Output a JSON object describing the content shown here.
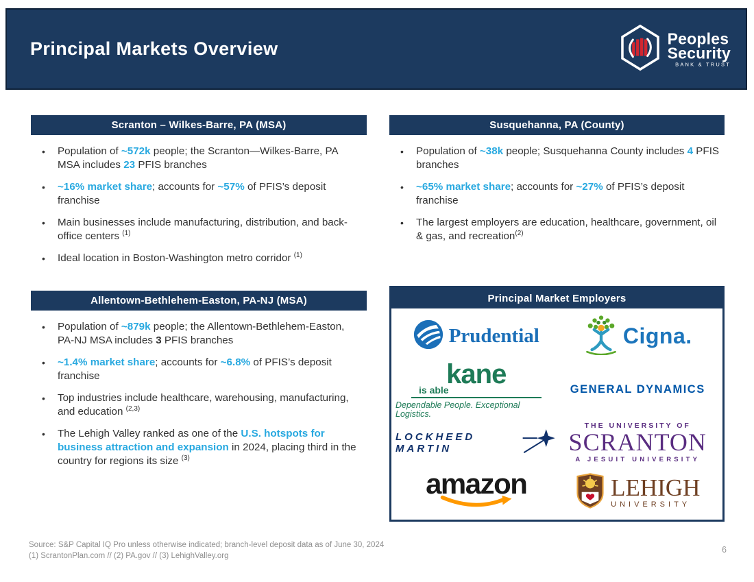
{
  "header": {
    "title": "Principal Markets Overview",
    "logo": {
      "line1": "Peoples",
      "line2": "Security",
      "line3": "BANK & TRUST"
    }
  },
  "panels": [
    {
      "title": "Scranton – Wilkes-Barre, PA (MSA)",
      "bullets": [
        [
          {
            "t": "Population of ",
            "s": "n"
          },
          {
            "t": "~572k",
            "s": "a"
          },
          {
            "t": " people; the Scranton—Wilkes-Barre, PA MSA includes ",
            "s": "n"
          },
          {
            "t": "23",
            "s": "a"
          },
          {
            "t": " PFIS branches",
            "s": "n"
          }
        ],
        [
          {
            "t": "~16% market share",
            "s": "a"
          },
          {
            "t": "; accounts for ",
            "s": "n"
          },
          {
            "t": "~57%",
            "s": "a"
          },
          {
            "t": " of PFIS’s deposit franchise",
            "s": "n"
          }
        ],
        [
          {
            "t": "Main businesses include manufacturing, distribution, and back-office centers ",
            "s": "n"
          },
          {
            "t": "(1)",
            "s": "sup"
          }
        ],
        [
          {
            "t": "Ideal location in Boston-Washington metro corridor ",
            "s": "n"
          },
          {
            "t": "(1)",
            "s": "sup"
          }
        ]
      ]
    },
    {
      "title": "Susquehanna, PA (County)",
      "bullets": [
        [
          {
            "t": "Population of ",
            "s": "n"
          },
          {
            "t": "~38k",
            "s": "a"
          },
          {
            "t": " people; Susquehanna County includes ",
            "s": "n"
          },
          {
            "t": "4",
            "s": "a"
          },
          {
            "t": " PFIS branches",
            "s": "n"
          }
        ],
        [
          {
            "t": "~65% market share",
            "s": "a"
          },
          {
            "t": "; accounts for ",
            "s": "n"
          },
          {
            "t": "~27%",
            "s": "a"
          },
          {
            "t": " of PFIS’s deposit franchise",
            "s": "n"
          }
        ],
        [
          {
            "t": "The largest employers are education, healthcare, government, oil & gas, and recreation",
            "s": "n"
          },
          {
            "t": "(2)",
            "s": "sup"
          }
        ]
      ]
    },
    {
      "title": "Allentown-Bethlehem-Easton, PA-NJ (MSA)",
      "bullets": [
        [
          {
            "t": "Population of ",
            "s": "n"
          },
          {
            "t": "~879k",
            "s": "a"
          },
          {
            "t": " people; the Allentown-Bethlehem-Easton, PA-NJ MSA includes ",
            "s": "n"
          },
          {
            "t": "3",
            "s": "b"
          },
          {
            "t": " PFIS branches",
            "s": "n"
          }
        ],
        [
          {
            "t": "~1.4% market share",
            "s": "a"
          },
          {
            "t": "; accounts for ",
            "s": "n"
          },
          {
            "t": "~6.8%",
            "s": "a"
          },
          {
            "t": " of PFIS’s deposit franchise",
            "s": "n"
          }
        ],
        [
          {
            "t": "Top industries include healthcare, warehousing, manufacturing, and education ",
            "s": "n"
          },
          {
            "t": "(2,3)",
            "s": "sup"
          }
        ],
        [
          {
            "t": "The Lehigh Valley ranked as one of the ",
            "s": "n"
          },
          {
            "t": "U.S. hotspots for business attraction and expansion",
            "s": "a"
          },
          {
            "t": " in 2024, placing third in the country for regions its size ",
            "s": "n"
          },
          {
            "t": "(3)",
            "s": "sup"
          }
        ]
      ]
    }
  ],
  "employers_panel": {
    "title": "Principal Market Employers",
    "logos": [
      {
        "name": "prudential",
        "text": "Prudential"
      },
      {
        "name": "cigna",
        "text": "Cigna."
      },
      {
        "name": "kane",
        "text": "kane",
        "sub": "is able",
        "tagline": "Dependable People. Exceptional Logistics."
      },
      {
        "name": "general-dynamics",
        "text": "GENERAL DYNAMICS"
      },
      {
        "name": "lockheed-martin",
        "text": "LOCKHEED MARTIN"
      },
      {
        "name": "university-of-scranton",
        "line1": "THE UNIVERSITY OF",
        "line2": "SCRANTON",
        "line3": "A JESUIT UNIVERSITY"
      },
      {
        "name": "amazon",
        "text": "amazon"
      },
      {
        "name": "lehigh-university",
        "line1": "LEHIGH",
        "line2": "UNIVERSITY"
      }
    ]
  },
  "footer": {
    "source_line1": "Source: S&P Capital IQ Pro unless otherwise indicated; branch-level deposit data as of June 30, 2024",
    "source_line2": "(1) ScrantonPlan.com // (2) PA.gov // (3) LehighValley.org",
    "page_number": "6"
  },
  "colors": {
    "navy": "#1C3A5F",
    "accent_blue": "#29A9E0",
    "body_text": "#333333",
    "footer_gray": "#8F8F8F",
    "logo_bar_red": "#D22630",
    "prudential_blue": "#1B6FB8",
    "cigna_blue": "#1C75BC",
    "cigna_green": "#5BA829",
    "cigna_orange": "#F5A623",
    "kane_green": "#1E7B57",
    "general_dynamics_blue": "#0056A8",
    "lockheed_navy": "#10316B",
    "scranton_purple": "#5A2D81",
    "amazon_black": "#1A1A1A",
    "amazon_orange": "#FF9900",
    "lehigh_brown": "#6F4023",
    "lehigh_gold": "#E8A33D"
  }
}
